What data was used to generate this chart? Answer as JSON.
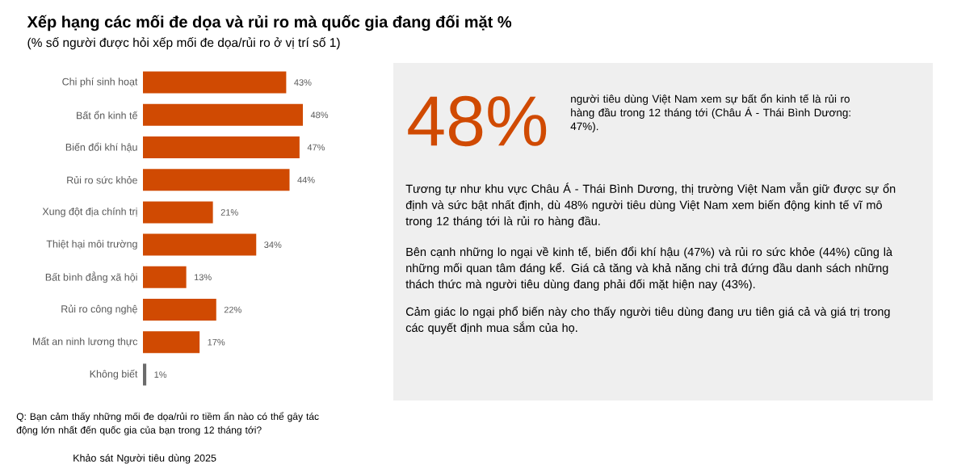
{
  "chart_data": [
    {
      "type": "bar",
      "orientation": "horizontal",
      "title": "Xếp hạng các mối đe dọa và rủi ro mà quốc gia đang đối mặt %",
      "subtitle": "(% số người được hỏi xếp mối đe dọa/rủi ro ở vị trí số 1)",
      "categories": [
        "Chi phí sinh hoạt",
        "Bất ổn kinh tế",
        "Biến đổi khí hậu",
        "Rủi ro sức khỏe",
        "Xung đột địa chính trị",
        "Thiệt hại môi trường",
        "Bất bình đẳng xã hội",
        "Rủi ro công nghệ",
        "Mất an ninh lương thực",
        "Không biết"
      ],
      "values": [
        43,
        48,
        47,
        44,
        21,
        34,
        13,
        22,
        17,
        1
      ],
      "colors": [
        "#d04a02",
        "#d04a02",
        "#d04a02",
        "#d04a02",
        "#d04a02",
        "#d04a02",
        "#d04a02",
        "#d04a02",
        "#d04a02",
        "#6b6b6b"
      ],
      "value_labels": [
        "43%",
        "48%",
        "47%",
        "44%",
        "21%",
        "34%",
        "13%",
        "22%",
        "17%",
        "1%"
      ],
      "annotations": [
        "Q: Bạn cảm thấy những mối đe dọa/rủi ro tiềm ẩn nào có thể gây tác động lớn nhất đến quốc gia của bạn trong 12 tháng tới?",
        "Khảo sát Người tiêu dùng 2025"
      ]
    },
    {
      "type": "other",
      "annotations": [
        "48%",
        "người tiêu dùng Việt Nam xem sự bất ổn kinh tế là rủi ro hàng đầu trong 12 tháng tới (Châu Á - Thái Bình Dương: 47%).",
        "Tương tự như khu vực Châu Á - Thái Bình Dương, thị trường Việt Nam vẫn giữ được sự ổn định và sức bật nhất định, dù 48% người tiêu dùng Việt Nam xem biến động kinh tế vĩ mô trong 12 tháng tới là rủi ro hàng đầu.",
        "Bên cạnh những lo ngại về kinh tế, biến đổi khí hậu (47%) và rủi ro sức khỏe (44%) cũng là những mối quan tâm đáng kể. Giá cả tăng và khả năng chi trả đứng đầu danh sách những thách thức mà người tiêu dùng đang phải đối mặt hiện nay (43%).",
        "Cảm giác lo ngại phổ biến này cho thấy người tiêu dùng đang ưu tiên giá cả và giá trị trong các quyết định mua sắm của họ."
      ]
    }
  ]
}
